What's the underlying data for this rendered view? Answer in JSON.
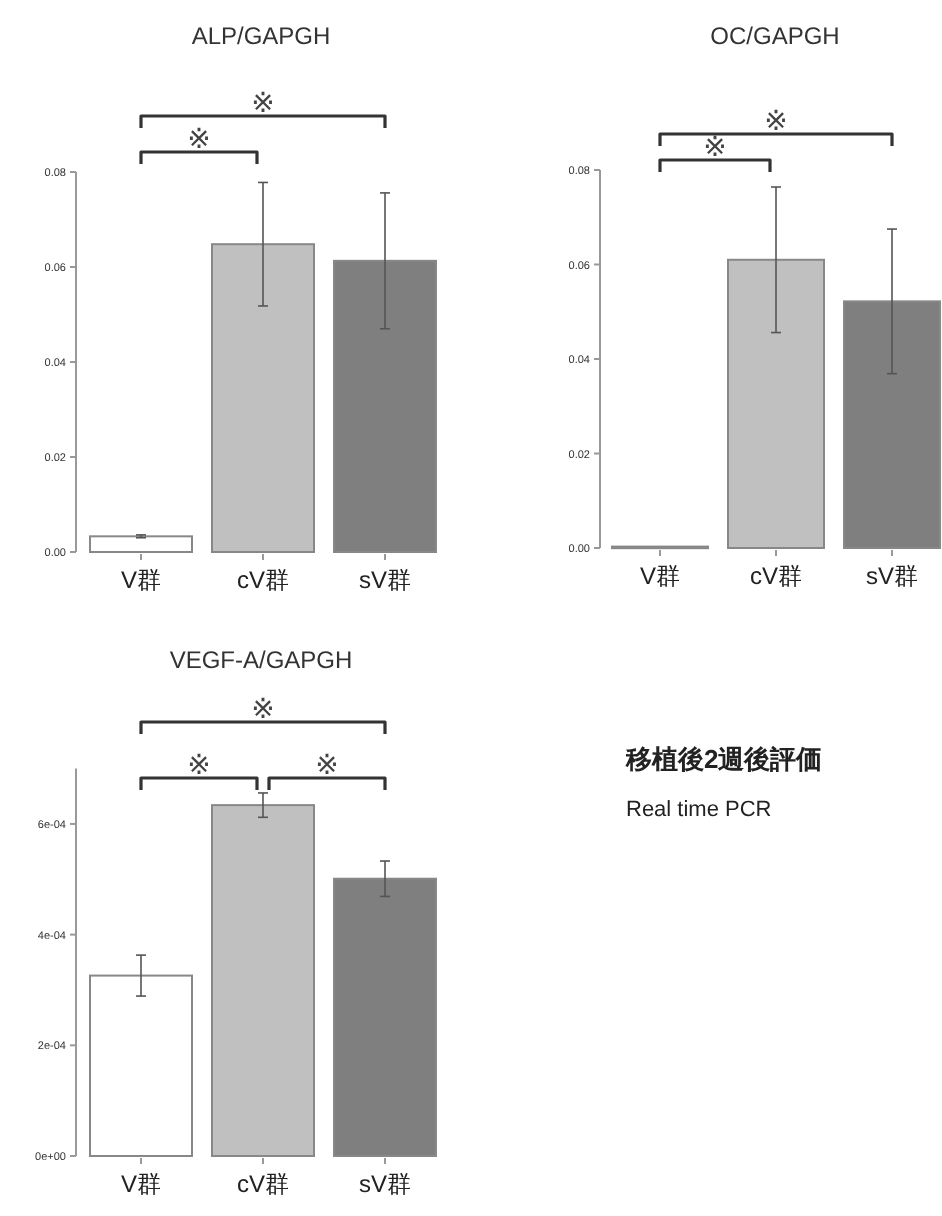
{
  "chart_data": [
    {
      "type": "bar",
      "title": "ALP/GAPGH",
      "categories": [
        "V群",
        "cV群",
        "sV群"
      ],
      "values": [
        0.0033,
        0.0648,
        0.0613
      ],
      "errors": [
        0.0003,
        0.013,
        0.0143
      ],
      "colors": [
        "#ffffff",
        "#c0c0c0",
        "#7f7f7f"
      ],
      "ylim": [
        0,
        0.08
      ],
      "yticks": [
        {
          "value": 0,
          "label": "0.00"
        },
        {
          "value": 0.02,
          "label": "0.02"
        },
        {
          "value": 0.04,
          "label": "0.04"
        },
        {
          "value": 0.06,
          "label": "0.06"
        },
        {
          "value": 0.08,
          "label": "0.08"
        }
      ],
      "annotations": [
        "※",
        "※"
      ]
    },
    {
      "type": "bar",
      "title": "OC/GAPGH",
      "categories": [
        "V群",
        "cV群",
        "sV群"
      ],
      "values": [
        0.0003,
        0.061,
        0.0522
      ],
      "errors": [
        null,
        0.0154,
        0.0153
      ],
      "colors": [
        "#ffffff",
        "#c0c0c0",
        "#7f7f7f"
      ],
      "ylim": [
        0,
        0.08
      ],
      "yticks": [
        {
          "value": 0,
          "label": "0.00"
        },
        {
          "value": 0.02,
          "label": "0.02"
        },
        {
          "value": 0.04,
          "label": "0.04"
        },
        {
          "value": 0.06,
          "label": "0.06"
        },
        {
          "value": 0.08,
          "label": "0.08"
        }
      ],
      "annotations": [
        "※",
        "※"
      ]
    },
    {
      "type": "bar",
      "title": "VEGF-A/GAPGH",
      "categories": [
        "V群",
        "cV群",
        "sV群"
      ],
      "values": [
        0.000326,
        0.000634,
        0.000501
      ],
      "errors": [
        3.7e-05,
        2.2e-05,
        3.2e-05
      ],
      "colors": [
        "#ffffff",
        "#c0c0c0",
        "#7f7f7f"
      ],
      "ylim": [
        0,
        0.0007
      ],
      "yticks": [
        {
          "value": 0,
          "label": "0e+00"
        },
        {
          "value": 0.0002,
          "label": "2e-04"
        },
        {
          "value": 0.0004,
          "label": "4e-04"
        },
        {
          "value": 0.0006,
          "label": "6e-04"
        }
      ],
      "annotations": [
        "※",
        "※",
        "※"
      ]
    },
    {
      "type": "other",
      "annotations": [
        "移植後2週後評価",
        "Real time PCR"
      ]
    }
  ]
}
